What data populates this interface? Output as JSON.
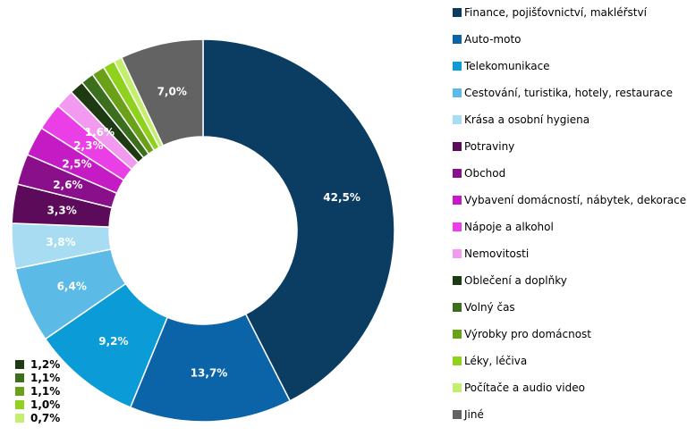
{
  "chart_data": {
    "type": "pie",
    "variant": "donut",
    "start_angle_deg": 0,
    "direction": "clockwise",
    "legend_position": "right",
    "slices": [
      {
        "label": "Finance, pojišťovnictví, makléřství",
        "value": 42.5,
        "display": "42,5%",
        "color": "#0b3c62"
      },
      {
        "label": "Auto-moto",
        "value": 13.7,
        "display": "13,7%",
        "color": "#0b63a8"
      },
      {
        "label": "Telekomunikace",
        "value": 9.2,
        "display": "9,2%",
        "color": "#0b9bd6"
      },
      {
        "label": "Cestování, turistika, hotely, restaurace",
        "value": 6.4,
        "display": "6,4%",
        "color": "#5bbbe6"
      },
      {
        "label": "Krása a osobní hygiena",
        "value": 3.8,
        "display": "3,8%",
        "color": "#a8dcf3"
      },
      {
        "label": "Potraviny",
        "value": 3.3,
        "display": "3,3%",
        "color": "#5c0a5a"
      },
      {
        "label": "Obchod",
        "value": 2.6,
        "display": "2,6%",
        "color": "#8a0f8a"
      },
      {
        "label": "Vybavení domácností, nábytek, dekorace",
        "value": 2.5,
        "display": "2,5%",
        "color": "#c51bc4"
      },
      {
        "label": "Nápoje a alkohol",
        "value": 2.3,
        "display": "2,3%",
        "color": "#ea3fe6"
      },
      {
        "label": "Nemovitosti",
        "value": 1.6,
        "display": "1,6%",
        "color": "#f19af0"
      },
      {
        "label": "Oblečení a doplňky",
        "value": 1.2,
        "display": "1,2%",
        "color": "#1e3a12"
      },
      {
        "label": "Volný čas",
        "value": 1.1,
        "display": "1,1%",
        "color": "#3b6e1d"
      },
      {
        "label": "Výrobky pro domácnost",
        "value": 1.1,
        "display": "1,1%",
        "color": "#6aa118"
      },
      {
        "label": "Léky, léčiva",
        "value": 1.0,
        "display": "1,0%",
        "color": "#8fd21e"
      },
      {
        "label": "Počítače a audio video",
        "value": 0.7,
        "display": "0,7%",
        "color": "#c4ee6e"
      },
      {
        "label": "Jiné",
        "value": 7.0,
        "display": "7,0%",
        "color": "#636363"
      }
    ],
    "small_value_legend": [
      {
        "display": "1,2%",
        "color": "#1e3a12"
      },
      {
        "display": "1,1%",
        "color": "#3b6e1d"
      },
      {
        "display": "1,1%",
        "color": "#6aa118"
      },
      {
        "display": "1,0%",
        "color": "#8fd21e"
      },
      {
        "display": "0,7%",
        "color": "#c4ee6e"
      }
    ]
  }
}
